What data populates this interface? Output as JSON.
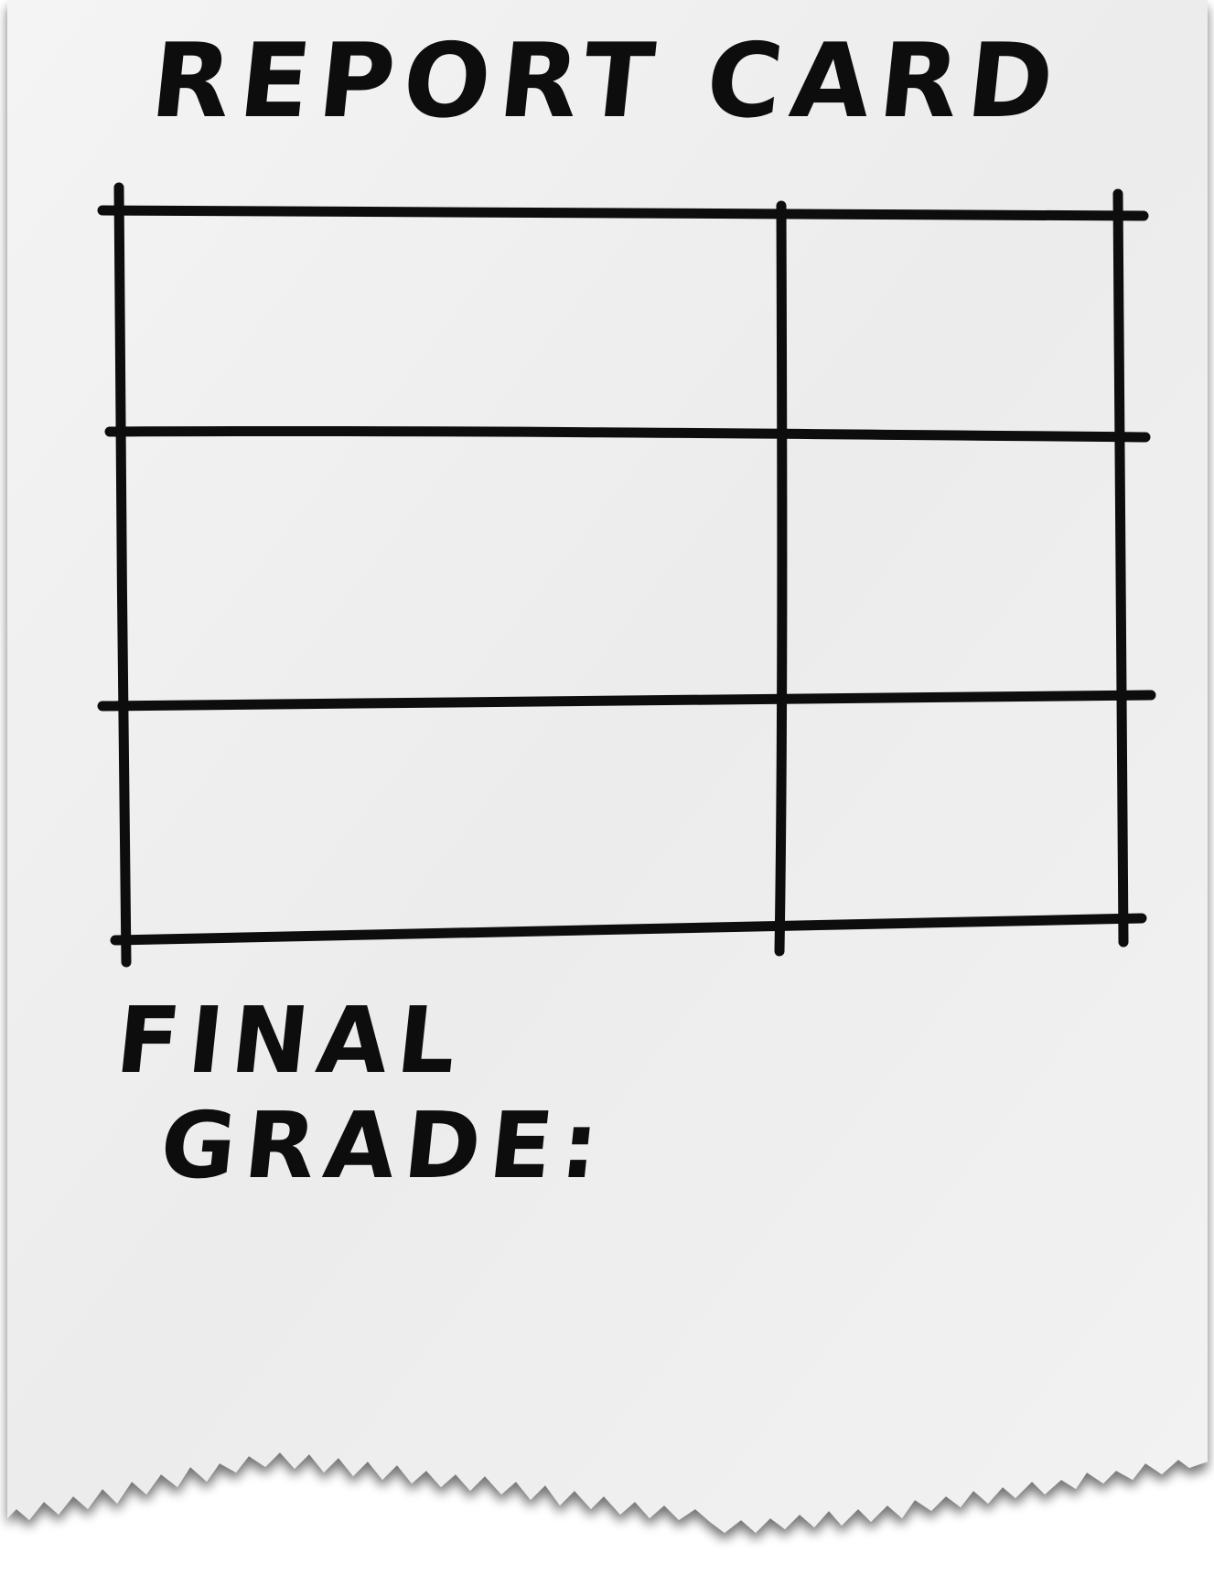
{
  "document": {
    "title": "REPORT CARD",
    "final_grade_line1": "FINAL",
    "final_grade_line2": "GRADE:"
  },
  "table": {
    "rows": 3,
    "columns": 2
  },
  "colors": {
    "paper": "#efefef",
    "ink": "#0d0d0d",
    "shadow": "#9a9a9a"
  }
}
